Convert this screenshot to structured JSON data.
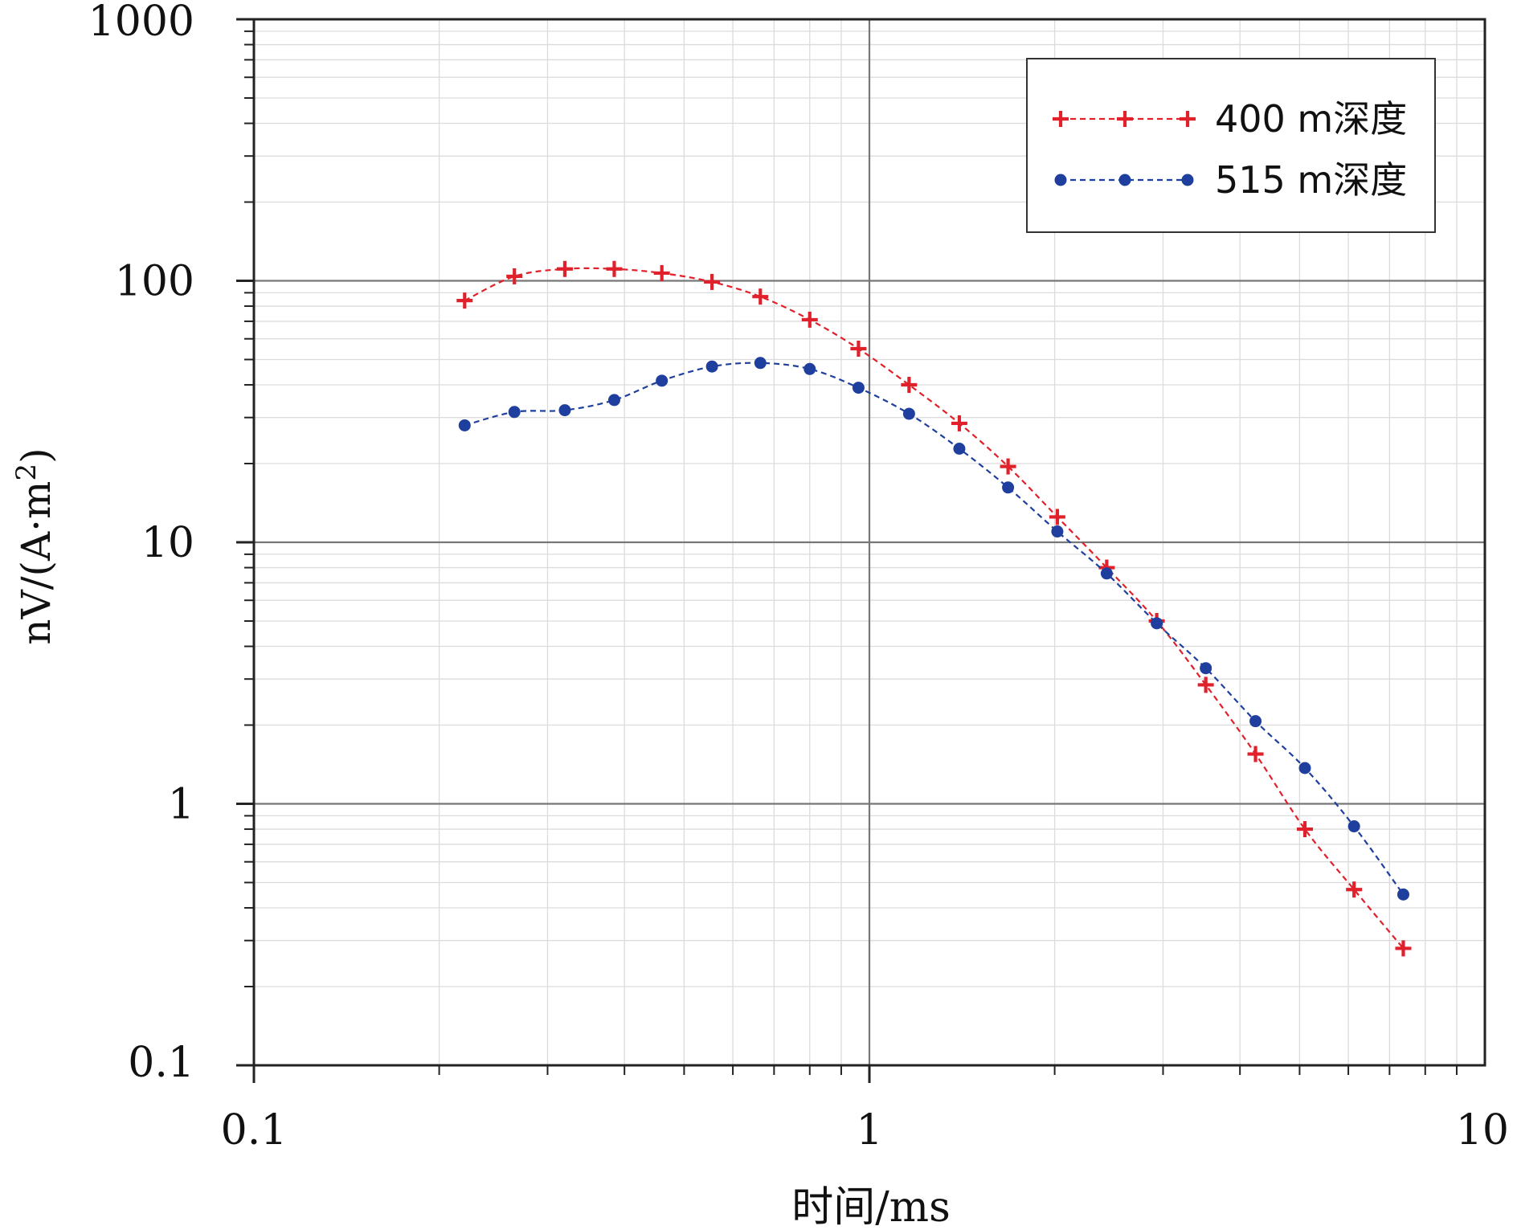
{
  "chart_data": {
    "type": "line",
    "xlabel": "时间/ms",
    "ylabel_main": "nV/(A·m",
    "ylabel_sup": "2",
    "ylabel_tail": ")",
    "x_scale": "log",
    "y_scale": "log",
    "xlim": [
      0.1,
      10
    ],
    "ylim": [
      0.1,
      1000
    ],
    "x_ticks": [
      "0.1",
      "1",
      "10"
    ],
    "x_tick_values": [
      0.1,
      1,
      10
    ],
    "y_ticks": [
      "0.1",
      "1",
      "10",
      "100",
      "1000"
    ],
    "y_tick_values": [
      0.1,
      1,
      10,
      100,
      1000
    ],
    "grid": true,
    "legend_position": "top-right",
    "series": [
      {
        "name": "400 m深度",
        "color": "#e0202a",
        "marker": "plus",
        "line_style": "dashed",
        "x": [
          0.22,
          0.265,
          0.32,
          0.385,
          0.46,
          0.555,
          0.665,
          0.8,
          0.96,
          1.16,
          1.4,
          1.68,
          2.02,
          2.43,
          2.93,
          3.52,
          4.24,
          5.1,
          6.13,
          7.37
        ],
        "y": [
          84,
          104,
          111,
          111,
          107,
          99,
          87,
          71,
          55,
          40,
          28.5,
          19.5,
          12.5,
          8,
          5,
          2.85,
          1.55,
          0.8,
          0.47,
          0.28
        ]
      },
      {
        "name": "515 m深度",
        "color": "#1f3f9e",
        "marker": "circle",
        "line_style": "dashed",
        "x": [
          0.22,
          0.265,
          0.32,
          0.385,
          0.46,
          0.555,
          0.665,
          0.8,
          0.96,
          1.16,
          1.4,
          1.68,
          2.02,
          2.43,
          2.93,
          3.52,
          4.24,
          5.1,
          6.13,
          7.37
        ],
        "y": [
          28,
          31.5,
          32,
          35,
          41.5,
          47,
          48.5,
          46,
          39,
          31,
          22.8,
          16.2,
          11,
          7.6,
          4.9,
          3.3,
          2.07,
          1.37,
          0.82,
          0.45
        ]
      }
    ]
  }
}
